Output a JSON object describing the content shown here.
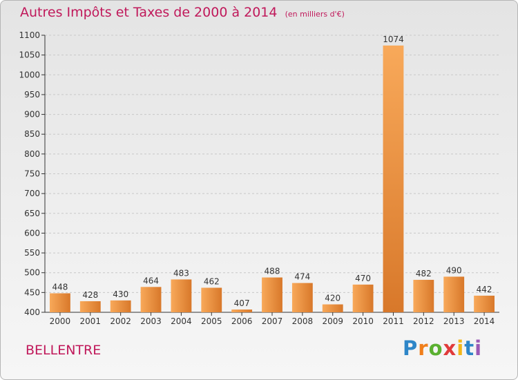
{
  "title": "Autres Impôts et Taxes de 2000 à 2014",
  "subtitle": "(en milliers d'€)",
  "place": "BELLENTRE",
  "logo": {
    "text": "Proxiti",
    "letters": [
      {
        "ch": "P",
        "color": "#2e86c8"
      },
      {
        "ch": "r",
        "color": "#f07e1a"
      },
      {
        "ch": "o",
        "color": "#5ab030"
      },
      {
        "ch": "x",
        "color": "#e03a3a"
      },
      {
        "ch": "i",
        "color": "#f2b619"
      },
      {
        "ch": "t",
        "color": "#2e86c8"
      },
      {
        "ch": "i",
        "color": "#9b59b6"
      }
    ]
  },
  "colors": {
    "title": "#c0185a",
    "bar_light": "#f8a95a",
    "bar_dark": "#d8782a",
    "axis": "#333333",
    "grid": "#c8c8c8"
  },
  "chart_data": {
    "type": "bar",
    "title": "Autres Impôts et Taxes de 2000 à 2014",
    "subtitle": "(en milliers d'€)",
    "categories": [
      "2000",
      "2001",
      "2002",
      "2003",
      "2004",
      "2005",
      "2006",
      "2007",
      "2008",
      "2009",
      "2010",
      "2011",
      "2012",
      "2013",
      "2014"
    ],
    "values": [
      448,
      428,
      430,
      464,
      483,
      462,
      407,
      488,
      474,
      420,
      470,
      1074,
      482,
      490,
      442
    ],
    "ylim": [
      400,
      1100
    ],
    "yticks": [
      400,
      450,
      500,
      550,
      600,
      650,
      700,
      750,
      800,
      850,
      900,
      950,
      1000,
      1050,
      1100
    ],
    "grid": "horizontal, dashed"
  }
}
